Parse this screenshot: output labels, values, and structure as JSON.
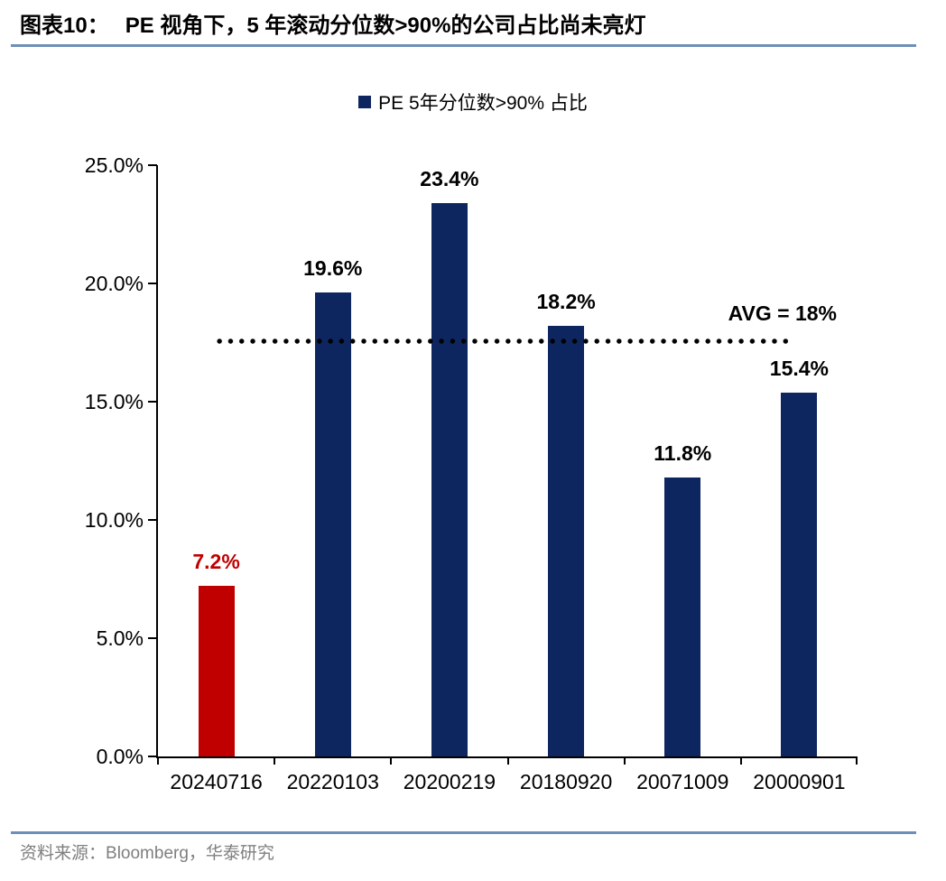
{
  "figure": {
    "number_label": "图表10：",
    "title": "PE 视角下，5 年滚动分位数>90%的公司占比尚未亮灯",
    "source_prefix": "资料来源：",
    "source": "Bloomberg，华泰研究"
  },
  "legend": {
    "label": "PE 5年分位数>90% 占比",
    "marker_color": "#0e2660"
  },
  "chart_data": {
    "type": "bar",
    "title": "PE 5年分位数>90% 占比",
    "categories": [
      "20240716",
      "20220103",
      "20200219",
      "20180920",
      "20071009",
      "20000901"
    ],
    "values": [
      7.2,
      19.6,
      23.4,
      18.2,
      11.8,
      15.4
    ],
    "labels": [
      "7.2%",
      "19.6%",
      "23.4%",
      "18.2%",
      "11.8%",
      "15.4%"
    ],
    "bar_colors": [
      "#c00000",
      "#0e2660",
      "#0e2660",
      "#0e2660",
      "#0e2660",
      "#0e2660"
    ],
    "label_colors": [
      "#c00000",
      "#000000",
      "#000000",
      "#000000",
      "#000000",
      "#000000"
    ],
    "xlabel": "",
    "ylabel": "",
    "ylim": [
      0,
      25
    ],
    "y_ticks": [
      {
        "value": 25,
        "label": "25.0%"
      },
      {
        "value": 20,
        "label": "20.0%"
      },
      {
        "value": 15,
        "label": "15.0%"
      },
      {
        "value": 10,
        "label": "10.0%"
      },
      {
        "value": 5,
        "label": "5.0%"
      },
      {
        "value": 0,
        "label": "0.0%"
      }
    ],
    "avg_line": {
      "label": "AVG = 18%",
      "value": 18,
      "drawn_at_value": 17.56,
      "style": "dotted",
      "color": "#000000"
    },
    "grid": false,
    "legend_position": "top-center"
  },
  "colors": {
    "accent_red": "#c00000",
    "navy": "#0e2660",
    "rule_blue": "#6d8fb7",
    "source_gray": "#7f7f7f",
    "axis_black": "#000000"
  }
}
